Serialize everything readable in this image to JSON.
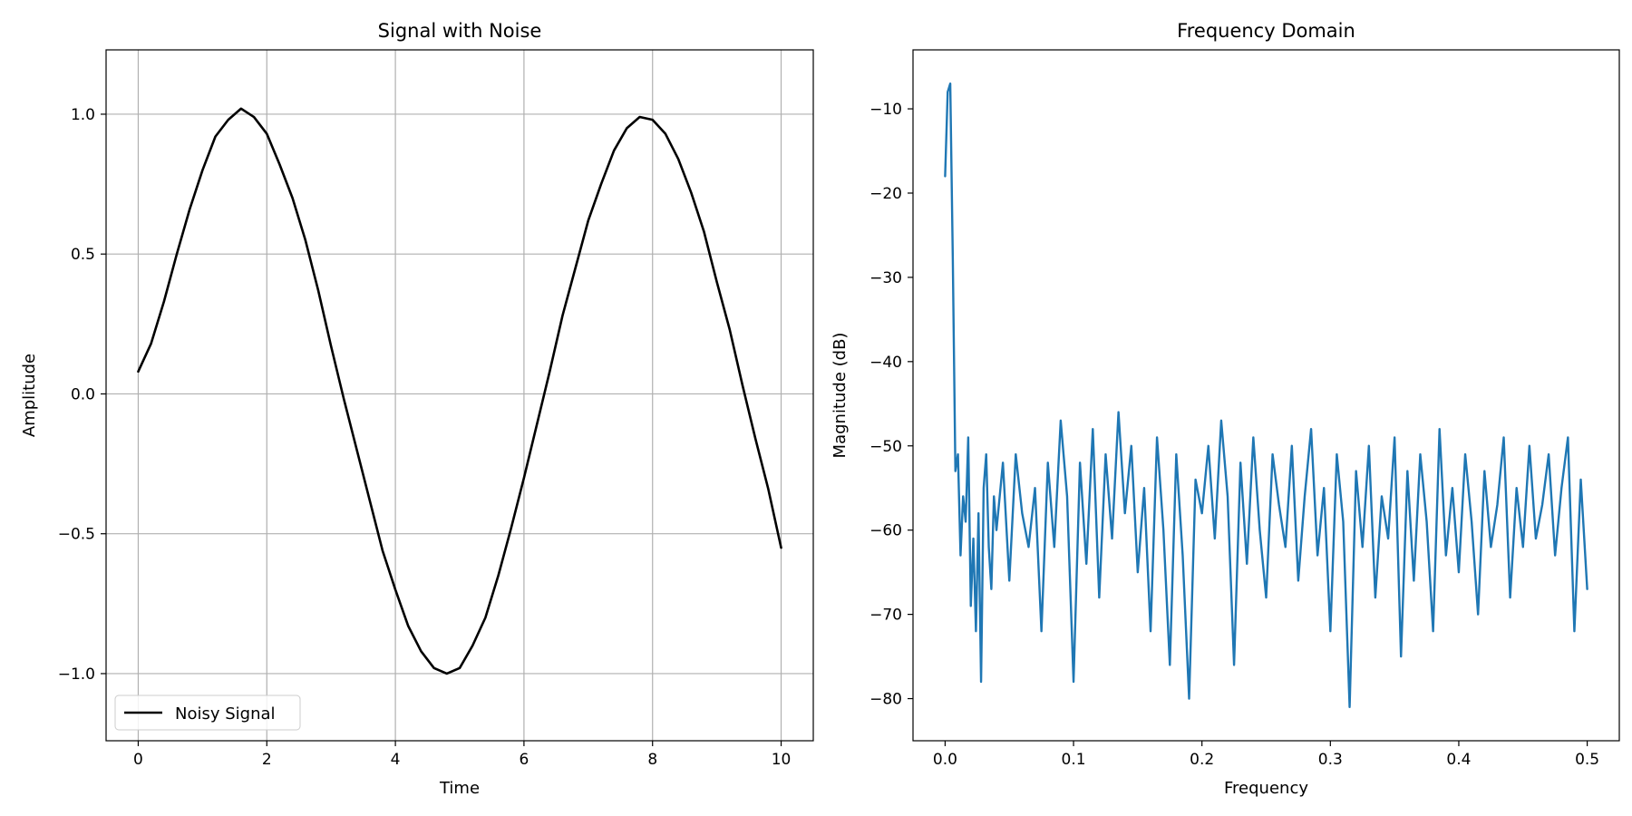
{
  "chart_data": [
    {
      "type": "line",
      "title": "Signal with Noise",
      "xlabel": "Time",
      "ylabel": "Amplitude",
      "xlim": [
        -0.5,
        10.5
      ],
      "ylim": [
        -1.24,
        1.23
      ],
      "xticks": [
        0,
        2,
        4,
        6,
        8,
        10
      ],
      "xtick_labels": [
        "0",
        "2",
        "4",
        "6",
        "8",
        "10"
      ],
      "yticks": [
        -1.0,
        -0.5,
        0.0,
        0.5,
        1.0
      ],
      "ytick_labels": [
        "−1.0",
        "−0.5",
        "0.0",
        "0.5",
        "1.0"
      ],
      "grid": true,
      "legend": {
        "placement": "lower-left",
        "entries": [
          "Noisy Signal"
        ]
      },
      "series": [
        {
          "name": "Noisy Signal",
          "color": "#000000",
          "x": [
            0.0,
            0.2,
            0.4,
            0.6,
            0.8,
            1.0,
            1.2,
            1.4,
            1.6,
            1.8,
            2.0,
            2.2,
            2.4,
            2.6,
            2.8,
            3.0,
            3.2,
            3.4,
            3.6,
            3.8,
            4.0,
            4.2,
            4.4,
            4.6,
            4.8,
            5.0,
            5.2,
            5.4,
            5.6,
            5.8,
            6.0,
            6.2,
            6.4,
            6.6,
            6.8,
            7.0,
            7.2,
            7.4,
            7.6,
            7.8,
            8.0,
            8.2,
            8.4,
            8.6,
            8.8,
            9.0,
            9.2,
            9.4,
            9.6,
            9.8,
            10.0
          ],
          "y": [
            0.08,
            0.18,
            0.33,
            0.5,
            0.66,
            0.8,
            0.92,
            0.98,
            1.02,
            0.99,
            0.93,
            0.82,
            0.7,
            0.55,
            0.37,
            0.17,
            -0.02,
            -0.2,
            -0.38,
            -0.56,
            -0.7,
            -0.83,
            -0.92,
            -0.98,
            -1.0,
            -0.98,
            -0.9,
            -0.8,
            -0.65,
            -0.48,
            -0.3,
            -0.11,
            0.08,
            0.28,
            0.45,
            0.62,
            0.75,
            0.87,
            0.95,
            0.99,
            0.98,
            0.93,
            0.84,
            0.72,
            0.58,
            0.4,
            0.23,
            0.03,
            -0.16,
            -0.34,
            -0.55
          ]
        }
      ]
    },
    {
      "type": "line",
      "title": "Frequency Domain",
      "xlabel": "Frequency",
      "ylabel": "Magnitude (dB)",
      "xlim": [
        -0.025,
        0.525
      ],
      "ylim": [
        -85,
        -3
      ],
      "xticks": [
        0.0,
        0.1,
        0.2,
        0.3,
        0.4,
        0.5
      ],
      "xtick_labels": [
        "0.0",
        "0.1",
        "0.2",
        "0.3",
        "0.4",
        "0.5"
      ],
      "yticks": [
        -10,
        -20,
        -30,
        -40,
        -50,
        -60,
        -70,
        -80
      ],
      "ytick_labels": [
        "−10",
        "−20",
        "−30",
        "−40",
        "−50",
        "−60",
        "−70",
        "−80"
      ],
      "grid": false,
      "series": [
        {
          "color": "#1f77b4",
          "x": [
            0.0,
            0.002,
            0.004,
            0.006,
            0.008,
            0.01,
            0.012,
            0.014,
            0.016,
            0.018,
            0.02,
            0.022,
            0.024,
            0.026,
            0.028,
            0.03,
            0.032,
            0.034,
            0.036,
            0.038,
            0.04,
            0.045,
            0.05,
            0.055,
            0.06,
            0.065,
            0.07,
            0.075,
            0.08,
            0.085,
            0.09,
            0.095,
            0.1,
            0.105,
            0.11,
            0.115,
            0.12,
            0.125,
            0.13,
            0.135,
            0.14,
            0.145,
            0.15,
            0.155,
            0.16,
            0.165,
            0.17,
            0.175,
            0.18,
            0.185,
            0.19,
            0.195,
            0.2,
            0.205,
            0.21,
            0.215,
            0.22,
            0.225,
            0.23,
            0.235,
            0.24,
            0.245,
            0.25,
            0.255,
            0.26,
            0.265,
            0.27,
            0.275,
            0.28,
            0.285,
            0.29,
            0.295,
            0.3,
            0.305,
            0.31,
            0.315,
            0.32,
            0.325,
            0.33,
            0.335,
            0.34,
            0.345,
            0.35,
            0.355,
            0.36,
            0.365,
            0.37,
            0.375,
            0.38,
            0.385,
            0.39,
            0.395,
            0.4,
            0.405,
            0.41,
            0.415,
            0.42,
            0.425,
            0.43,
            0.435,
            0.44,
            0.445,
            0.45,
            0.455,
            0.46,
            0.465,
            0.47,
            0.475,
            0.48,
            0.485,
            0.49,
            0.495,
            0.5
          ],
          "y": [
            -18,
            -8,
            -7,
            -28,
            -53,
            -51,
            -63,
            -56,
            -59,
            -49,
            -69,
            -61,
            -72,
            -58,
            -78,
            -55,
            -51,
            -62,
            -67,
            -56,
            -60,
            -52,
            -66,
            -51,
            -58,
            -62,
            -55,
            -72,
            -52,
            -62,
            -47,
            -56,
            -78,
            -52,
            -64,
            -48,
            -68,
            -51,
            -61,
            -46,
            -58,
            -50,
            -65,
            -55,
            -72,
            -49,
            -60,
            -76,
            -51,
            -63,
            -80,
            -54,
            -58,
            -50,
            -61,
            -47,
            -56,
            -76,
            -52,
            -64,
            -49,
            -60,
            -68,
            -51,
            -57,
            -62,
            -50,
            -66,
            -56,
            -48,
            -63,
            -55,
            -72,
            -51,
            -59,
            -81,
            -53,
            -62,
            -50,
            -68,
            -56,
            -61,
            -49,
            -75,
            -53,
            -66,
            -51,
            -59,
            -72,
            -48,
            -63,
            -55,
            -65,
            -51,
            -59,
            -70,
            -53,
            -62,
            -57,
            -49,
            -68,
            -55,
            -62,
            -50,
            -61,
            -57,
            -51,
            -63,
            -55,
            -49,
            -72,
            -54,
            -67
          ]
        }
      ]
    }
  ]
}
